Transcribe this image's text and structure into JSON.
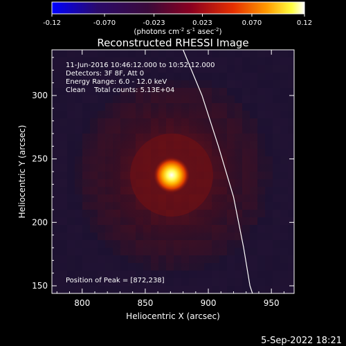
{
  "colorbar": {
    "ticks": [
      "-0.12",
      "-0.070",
      "-0.023",
      "0.023",
      "0.070",
      "0.12"
    ],
    "tick_values": [
      -0.12,
      -0.07,
      -0.023,
      0.023,
      0.07,
      0.12
    ],
    "range": [
      -0.12,
      0.12
    ],
    "units_main": "(photons cm",
    "units_sup1": "-2",
    "units_mid": " s",
    "units_sup2": "-1",
    "units_post": " asec",
    "units_sup3": "-2",
    "units_close": ")"
  },
  "chart_data": {
    "type": "heatmap",
    "title": "Reconstructed RHESSI Image",
    "xlabel": "Heliocentric X (arcsec)",
    "ylabel": "Heliocentric Y (arcsec)",
    "xlim": [
      776,
      968
    ],
    "ylim": [
      144,
      336
    ],
    "x_ticks": [
      "800",
      "850",
      "900",
      "950"
    ],
    "x_tick_values": [
      800,
      850,
      900,
      950
    ],
    "y_ticks": [
      "150",
      "200",
      "250",
      "300"
    ],
    "y_tick_values": [
      150,
      200,
      250,
      300
    ],
    "peak": {
      "x": 872,
      "y": 238
    },
    "colormap": "rainbow-blue-to-white",
    "limb_curve": [
      [
        880,
        336
      ],
      [
        895,
        300
      ],
      [
        908,
        260
      ],
      [
        920,
        220
      ],
      [
        928,
        180
      ],
      [
        933,
        150
      ],
      [
        935,
        144
      ]
    ],
    "annotations": {
      "line1": "11-Jun-2016 10:46:12.000 to 10:52:12.000",
      "line2": "Detectors: 3F 8F, Att 0",
      "line3": "Energy Range: 6.0 - 12.0 keV",
      "line4": "Clean    Total counts: 5.13E+04",
      "peak_label": "Position of Peak = [872,238]"
    }
  },
  "footer": {
    "timestamp": "5-Sep-2022 18:21"
  }
}
